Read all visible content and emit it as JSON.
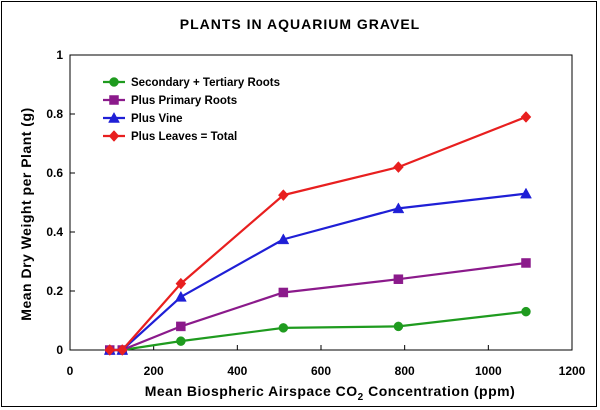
{
  "chart_data": {
    "type": "line",
    "title": "PLANTS IN AQUARIUM GRAVEL",
    "xlabel_prefix": "Mean Biospheric Airspace CO",
    "xlabel_sub": "2",
    "xlabel_suffix": " Concentration (ppm)",
    "ylabel": "Mean Dry Weight per Plant (g)",
    "xlim": [
      0,
      1200
    ],
    "ylim": [
      0,
      1
    ],
    "xticks": [
      0,
      200,
      400,
      600,
      800,
      1000,
      1200
    ],
    "yticks": [
      0,
      0.2,
      0.4,
      0.6,
      0.8,
      1
    ],
    "ytick_labels": [
      "0",
      "0.2",
      "0.4",
      "0.6",
      "0.8",
      "1"
    ],
    "grid": false,
    "legend_position": "top-left",
    "x": [
      95,
      125,
      265,
      510,
      785,
      1090
    ],
    "series": [
      {
        "name": "Secondary + Tertiary Roots",
        "marker": "circle",
        "color": "#1f9b1f",
        "values": [
          0.0,
          0.0,
          0.03,
          0.075,
          0.08,
          0.13
        ]
      },
      {
        "name": "Plus Primary Roots",
        "marker": "square",
        "color": "#8b1a8b",
        "values": [
          0.0,
          0.0,
          0.08,
          0.195,
          0.24,
          0.295
        ]
      },
      {
        "name": "Plus Vine",
        "marker": "triangle",
        "color": "#1f1fd6",
        "values": [
          0.0,
          0.0,
          0.18,
          0.375,
          0.48,
          0.53
        ]
      },
      {
        "name": "Plus Leaves = Total",
        "marker": "diamond",
        "color": "#e81f1f",
        "values": [
          0.0,
          0.0,
          0.225,
          0.525,
          0.62,
          0.79
        ]
      }
    ]
  }
}
